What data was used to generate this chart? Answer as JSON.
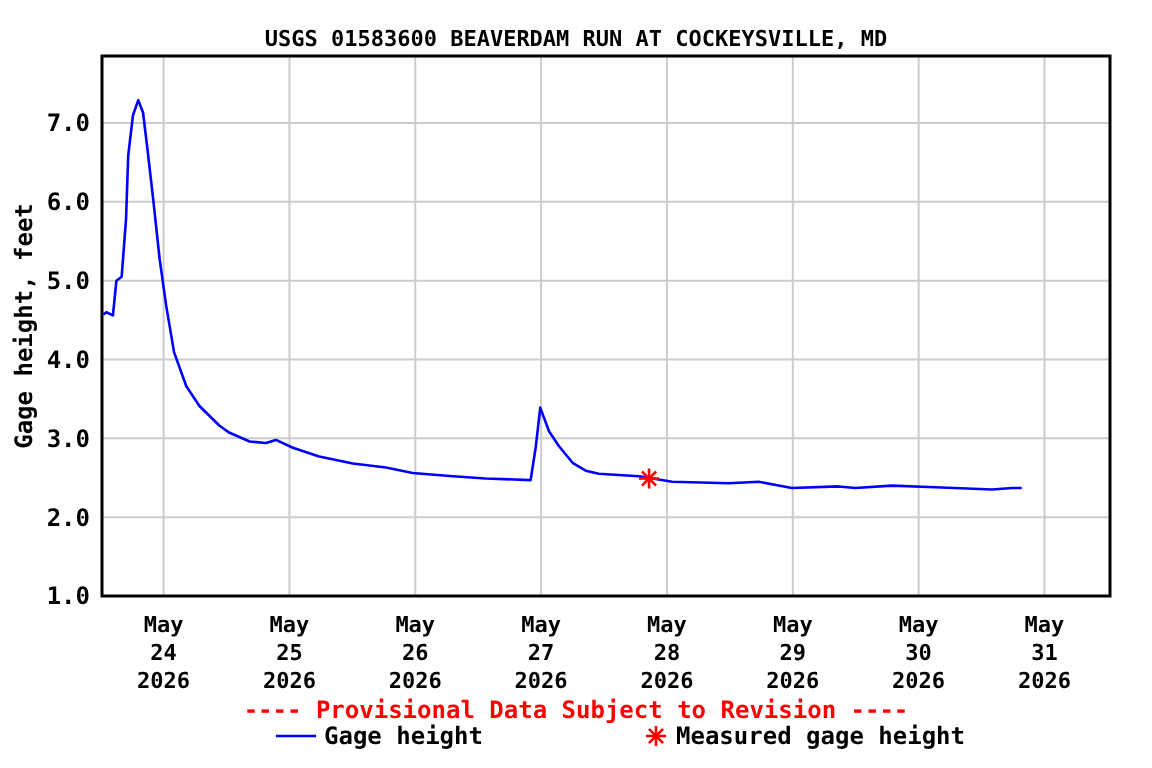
{
  "chart_data": {
    "type": "line",
    "title": "USGS 01583600 BEAVERDAM RUN AT COCKEYSVILLE, MD",
    "ylabel": "Gage height, feet",
    "annotations": [
      "---- Provisional Data Subject to Revision ----"
    ],
    "xlim": [
      "2026-05-23T12:15",
      "2026-05-31T12:30"
    ],
    "ylim": [
      1,
      7.85
    ],
    "xticks": [
      {
        "value": "2026-05-24",
        "label": "May 24 2026"
      },
      {
        "value": "2026-05-25",
        "label": "May 25 2026"
      },
      {
        "value": "2026-05-26",
        "label": "May 26 2026"
      },
      {
        "value": "2026-05-27",
        "label": "May 27 2026"
      },
      {
        "value": "2026-05-28",
        "label": "May 28 2026"
      },
      {
        "value": "2026-05-29",
        "label": "May 29 2026"
      },
      {
        "value": "2026-05-30",
        "label": "May 30 2026"
      },
      {
        "value": "2026-05-31",
        "label": "May 31 2026"
      }
    ],
    "yticks": [
      {
        "value": 1,
        "label": "1.0"
      },
      {
        "value": 2,
        "label": "2.0"
      },
      {
        "value": 3,
        "label": "3.0"
      },
      {
        "value": 4,
        "label": "4.0"
      },
      {
        "value": 5,
        "label": "5.0"
      },
      {
        "value": 6,
        "label": "6.0"
      },
      {
        "value": 7,
        "label": "7.0"
      }
    ],
    "grid": true,
    "legend": "bottom",
    "series": [
      {
        "name": "Gage height",
        "color": "#0000ff",
        "marker": "none",
        "line_style": "solid",
        "x": [
          "2026-05-23T12:30",
          "2026-05-23T13:05",
          "2026-05-23T14:20",
          "2026-05-23T15:00",
          "2026-05-23T16:00",
          "2026-05-23T16:50",
          "2026-05-23T17:15",
          "2026-05-23T18:10",
          "2026-05-23T19:10",
          "2026-05-23T20:05",
          "2026-05-23T20:55",
          "2026-05-23T22:00",
          "2026-05-23T23:15",
          "2026-05-24T00:30",
          "2026-05-24T02:00",
          "2026-05-24T04:20",
          "2026-05-24T06:50",
          "2026-05-24T10:40",
          "2026-05-24T12:35",
          "2026-05-24T16:25",
          "2026-05-24T19:30",
          "2026-05-24T21:25",
          "2026-05-25T00:40",
          "2026-05-25T05:40",
          "2026-05-25T12:05",
          "2026-05-25T18:25",
          "2026-05-25T23:30",
          "2026-05-26T07:10",
          "2026-05-26T13:25",
          "2026-05-26T22:00",
          "2026-05-26T23:00",
          "2026-05-26T23:50",
          "2026-05-27T00:40",
          "2026-05-27T01:30",
          "2026-05-27T03:25",
          "2026-05-27T06:00",
          "2026-05-27T08:30",
          "2026-05-27T11:00",
          "2026-05-27T18:40",
          "2026-05-28T01:00",
          "2026-05-28T11:50",
          "2026-05-28T17:30",
          "2026-05-28T23:50",
          "2026-05-29T08:45",
          "2026-05-29T11:55",
          "2026-05-29T18:55",
          "2026-05-30T03:10",
          "2026-05-30T14:00",
          "2026-05-30T17:50",
          "2026-05-30T19:40"
        ],
        "values": [
          4.57,
          4.6,
          4.56,
          5.0,
          5.05,
          5.78,
          6.59,
          7.1,
          7.29,
          7.13,
          6.67,
          6.04,
          5.27,
          4.68,
          4.09,
          3.66,
          3.41,
          3.16,
          3.07,
          2.96,
          2.94,
          2.98,
          2.88,
          2.77,
          2.68,
          2.63,
          2.56,
          2.52,
          2.49,
          2.47,
          2.9,
          3.39,
          3.24,
          3.09,
          2.9,
          2.69,
          2.59,
          2.55,
          2.52,
          2.45,
          2.43,
          2.45,
          2.37,
          2.39,
          2.37,
          2.4,
          2.38,
          2.35,
          2.37,
          2.37
        ]
      },
      {
        "name": "Measured gage height",
        "type": "scatter",
        "color": "#ff0000",
        "marker": "cross",
        "x": [
          "2026-05-27T20:35"
        ],
        "values": [
          2.49
        ]
      }
    ]
  }
}
